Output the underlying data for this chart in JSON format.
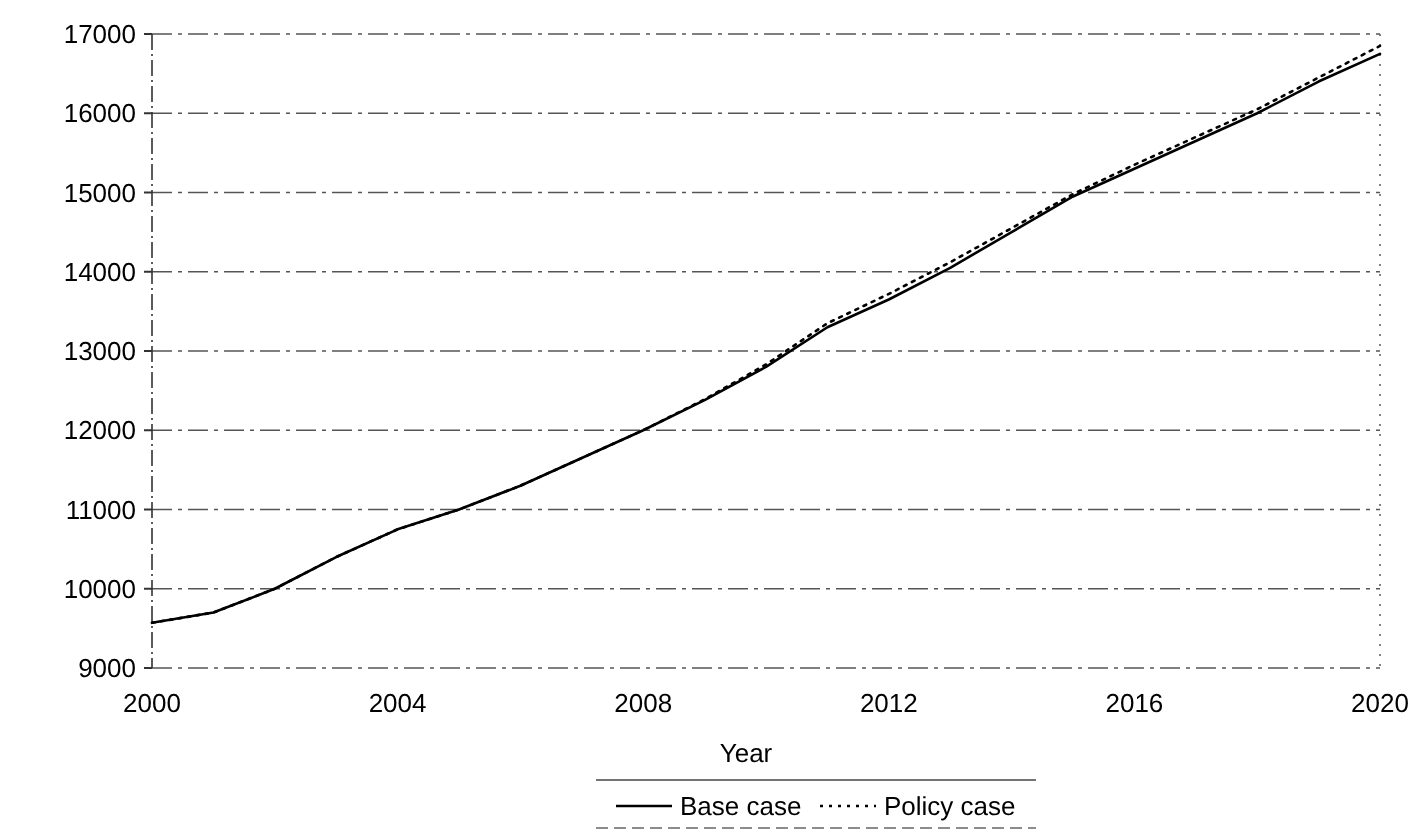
{
  "chart_data": {
    "type": "line",
    "xlabel": "Year",
    "x": [
      2000,
      2001,
      2002,
      2003,
      2004,
      2005,
      2006,
      2007,
      2008,
      2009,
      2010,
      2011,
      2012,
      2013,
      2014,
      2015,
      2016,
      2017,
      2018,
      2019,
      2020
    ],
    "series": [
      {
        "name": "Base case",
        "color": "#000000",
        "line_style": "solid",
        "values": [
          9570,
          9700,
          10000,
          10400,
          10750,
          11000,
          11300,
          11650,
          12000,
          12380,
          12800,
          13300,
          13650,
          14050,
          14500,
          14950,
          15300,
          15650,
          16000,
          16400,
          16750
        ]
      },
      {
        "name": "Policy case",
        "color": "#000000",
        "line_style": "dotted",
        "values": [
          9570,
          9700,
          10000,
          10400,
          10750,
          11000,
          11300,
          11650,
          12000,
          12390,
          12830,
          13350,
          13720,
          14120,
          14550,
          14980,
          15350,
          15700,
          16050,
          16450,
          16850
        ]
      }
    ],
    "xlim": [
      2000,
      2020
    ],
    "xticks": [
      2000,
      2004,
      2008,
      2012,
      2016,
      2020
    ],
    "ylim": [
      9000,
      17000
    ],
    "yticks": [
      9000,
      10000,
      11000,
      12000,
      13000,
      14000,
      15000,
      16000,
      17000
    ],
    "grid": "y",
    "legend": "bottom"
  }
}
